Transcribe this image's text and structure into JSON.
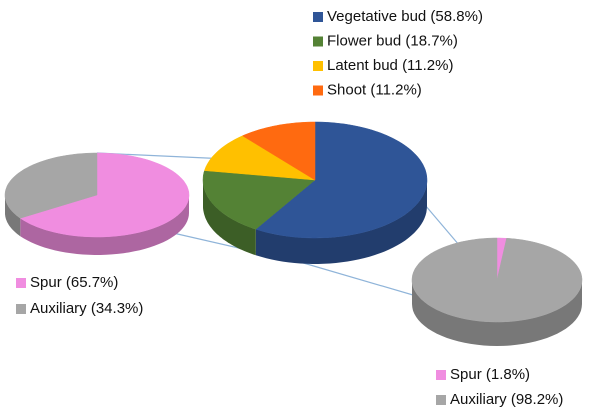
{
  "chart_data": [
    {
      "type": "pie",
      "categories": [
        "Vegetative bud (58.8%)",
        "Flower bud (18.7%)",
        "Latent bud (11.2%)",
        "Shoot (11.2%)"
      ],
      "values": [
        58.8,
        18.7,
        11.2,
        11.2
      ],
      "colors": [
        "#2f5597",
        "#548235",
        "#ffc000",
        "#ff6a10"
      ]
    },
    {
      "type": "pie",
      "categories": [
        "Spur (65.7%)",
        "Auxiliary (34.3%)"
      ],
      "values": [
        65.7,
        34.3
      ],
      "colors": [
        "#f08de0",
        "#a6a6a6"
      ]
    },
    {
      "type": "pie",
      "categories": [
        "Spur (1.8%)",
        "Auxiliary (98.2%)"
      ],
      "values": [
        1.8,
        98.2
      ],
      "colors": [
        "#f08de0",
        "#a6a6a6"
      ]
    }
  ]
}
